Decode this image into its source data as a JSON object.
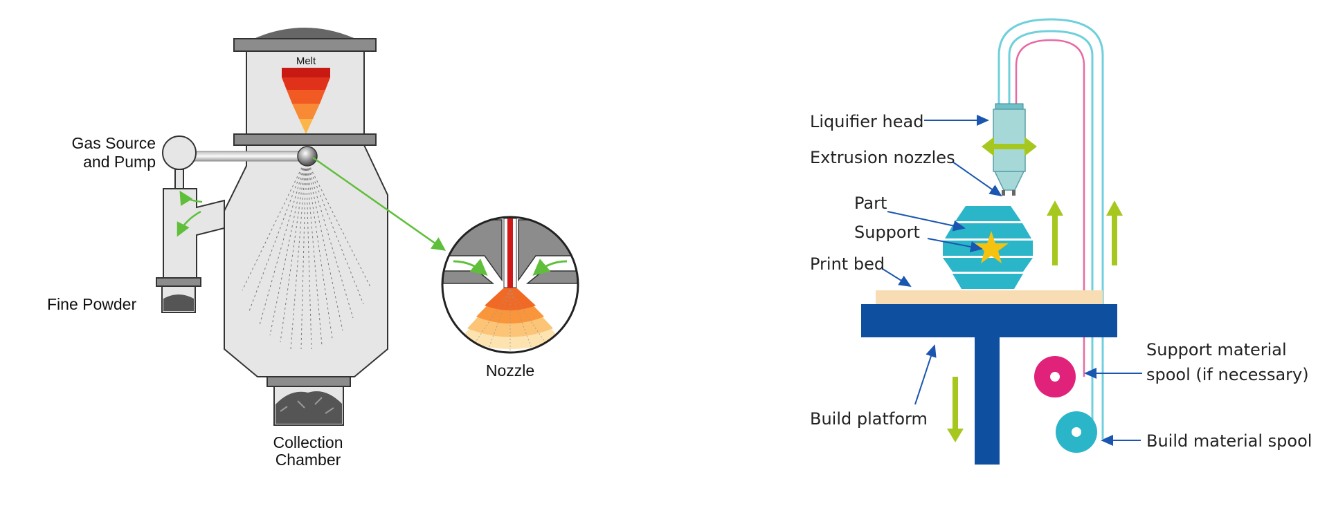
{
  "atomization": {
    "melt": "Melt",
    "gas_source": "Gas Source",
    "and_pump": "and Pump",
    "fine_powder": "Fine Powder",
    "collection": "Collection",
    "chamber": "Chamber",
    "nozzle": "Nozzle"
  },
  "fdm": {
    "liquifier_head": "Liquifier head",
    "extrusion_nozzles": "Extrusion nozzles",
    "part": "Part",
    "support": "Support",
    "print_bed": "Print bed",
    "build_platform": "Build platform",
    "support_spool_1": "Support material",
    "support_spool_2": "spool (if necessary)",
    "build_spool": "Build material spool"
  },
  "colors": {
    "vessel": "#e6e6e6",
    "steel": "#8c8c8c",
    "gas_arrow": "#5fbf3a",
    "fdm_blue": "#0f4fa0",
    "fdm_cyan": "#2bb5c8",
    "fdm_pink": "#e0227a",
    "fdm_green": "#a6c81e",
    "fdm_bed": "#f7dcb4",
    "fdm_star": "#f4c20f"
  }
}
